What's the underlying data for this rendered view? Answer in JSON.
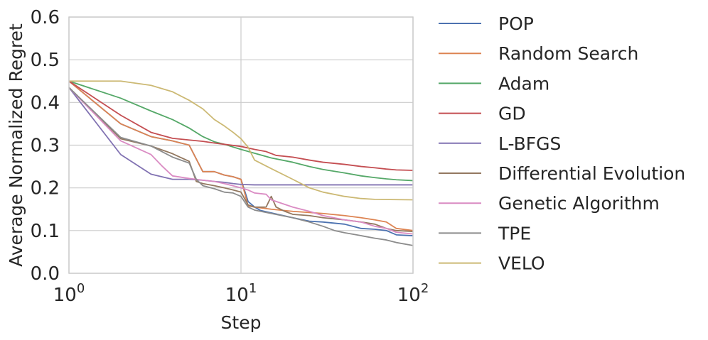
{
  "chart_data": {
    "type": "line",
    "xscale": "log",
    "xlabel": "Step",
    "ylabel": "Average Normalized Regret",
    "xlim": [
      1,
      100
    ],
    "ylim": [
      0.0,
      0.6
    ],
    "grid": true,
    "legend_position": "outside-right",
    "x_ticks": [
      {
        "value": 1,
        "base": "10",
        "exp": "0"
      },
      {
        "value": 10,
        "base": "10",
        "exp": "1"
      },
      {
        "value": 100,
        "base": "10",
        "exp": "2"
      }
    ],
    "y_ticks": [
      {
        "value": 0.0,
        "label": "0.0"
      },
      {
        "value": 0.1,
        "label": "0.1"
      },
      {
        "value": 0.2,
        "label": "0.2"
      },
      {
        "value": 0.3,
        "label": "0.3"
      },
      {
        "value": 0.4,
        "label": "0.4"
      },
      {
        "value": 0.5,
        "label": "0.5"
      },
      {
        "value": 0.6,
        "label": "0.6"
      }
    ],
    "series": [
      {
        "name": "POP",
        "color": "#4c72b0",
        "points": [
          [
            1,
            0.45
          ],
          [
            2,
            0.35
          ],
          [
            3,
            0.32
          ],
          [
            4,
            0.31
          ],
          [
            5,
            0.3
          ],
          [
            6,
            0.238
          ],
          [
            7,
            0.238
          ],
          [
            8,
            0.23
          ],
          [
            9,
            0.226
          ],
          [
            10,
            0.22
          ],
          [
            11,
            0.168
          ],
          [
            12,
            0.155
          ],
          [
            13,
            0.147
          ],
          [
            20,
            0.13
          ],
          [
            25,
            0.122
          ],
          [
            30,
            0.12
          ],
          [
            40,
            0.115
          ],
          [
            50,
            0.105
          ],
          [
            60,
            0.103
          ],
          [
            70,
            0.1
          ],
          [
            80,
            0.09
          ],
          [
            100,
            0.088
          ]
        ]
      },
      {
        "name": "Random Search",
        "color": "#dd8452",
        "points": [
          [
            1,
            0.45
          ],
          [
            2,
            0.35
          ],
          [
            3,
            0.32
          ],
          [
            4,
            0.31
          ],
          [
            5,
            0.3
          ],
          [
            6,
            0.238
          ],
          [
            7,
            0.238
          ],
          [
            8,
            0.23
          ],
          [
            9,
            0.226
          ],
          [
            10,
            0.22
          ],
          [
            11,
            0.158
          ],
          [
            12,
            0.155
          ],
          [
            15,
            0.15
          ],
          [
            20,
            0.145
          ],
          [
            30,
            0.14
          ],
          [
            40,
            0.135
          ],
          [
            50,
            0.13
          ],
          [
            60,
            0.125
          ],
          [
            70,
            0.12
          ],
          [
            80,
            0.105
          ],
          [
            100,
            0.1
          ]
        ]
      },
      {
        "name": "Adam",
        "color": "#55a868",
        "points": [
          [
            1,
            0.45
          ],
          [
            2,
            0.41
          ],
          [
            3,
            0.38
          ],
          [
            4,
            0.36
          ],
          [
            5,
            0.34
          ],
          [
            6,
            0.32
          ],
          [
            7,
            0.308
          ],
          [
            8,
            0.302
          ],
          [
            10,
            0.29
          ],
          [
            15,
            0.27
          ],
          [
            20,
            0.26
          ],
          [
            25,
            0.25
          ],
          [
            30,
            0.243
          ],
          [
            40,
            0.235
          ],
          [
            50,
            0.228
          ],
          [
            60,
            0.224
          ],
          [
            70,
            0.221
          ],
          [
            80,
            0.219
          ],
          [
            100,
            0.217
          ]
        ]
      },
      {
        "name": "GD",
        "color": "#c44e52",
        "points": [
          [
            1,
            0.45
          ],
          [
            2,
            0.37
          ],
          [
            3,
            0.33
          ],
          [
            4,
            0.316
          ],
          [
            5,
            0.312
          ],
          [
            6,
            0.309
          ],
          [
            7,
            0.305
          ],
          [
            8,
            0.302
          ],
          [
            10,
            0.297
          ],
          [
            12,
            0.29
          ],
          [
            14,
            0.285
          ],
          [
            16,
            0.276
          ],
          [
            20,
            0.272
          ],
          [
            25,
            0.265
          ],
          [
            30,
            0.26
          ],
          [
            40,
            0.255
          ],
          [
            50,
            0.25
          ],
          [
            60,
            0.247
          ],
          [
            70,
            0.244
          ],
          [
            80,
            0.242
          ],
          [
            100,
            0.241
          ]
        ]
      },
      {
        "name": "L-BFGS",
        "color": "#8172b2",
        "points": [
          [
            1,
            0.435
          ],
          [
            2,
            0.278
          ],
          [
            3,
            0.232
          ],
          [
            4,
            0.22
          ],
          [
            5,
            0.22
          ],
          [
            6,
            0.218
          ],
          [
            7,
            0.215
          ],
          [
            8,
            0.213
          ],
          [
            9,
            0.21
          ],
          [
            10,
            0.208
          ],
          [
            12,
            0.207
          ],
          [
            20,
            0.207
          ],
          [
            50,
            0.207
          ],
          [
            100,
            0.207
          ]
        ]
      },
      {
        "name": "Differential Evolution",
        "color": "#937860",
        "points": [
          [
            1,
            0.435
          ],
          [
            2,
            0.315
          ],
          [
            3,
            0.298
          ],
          [
            4,
            0.28
          ],
          [
            5,
            0.262
          ],
          [
            5.5,
            0.215
          ],
          [
            6,
            0.21
          ],
          [
            7,
            0.205
          ],
          [
            8,
            0.2
          ],
          [
            9,
            0.195
          ],
          [
            10,
            0.19
          ],
          [
            11,
            0.16
          ],
          [
            12,
            0.155
          ],
          [
            14,
            0.155
          ],
          [
            15,
            0.18
          ],
          [
            16,
            0.155
          ],
          [
            18,
            0.145
          ],
          [
            20,
            0.138
          ],
          [
            25,
            0.135
          ],
          [
            30,
            0.13
          ],
          [
            40,
            0.125
          ],
          [
            50,
            0.12
          ],
          [
            60,
            0.115
          ],
          [
            70,
            0.105
          ],
          [
            80,
            0.1
          ],
          [
            100,
            0.098
          ]
        ]
      },
      {
        "name": "Genetic Algorithm",
        "color": "#da8bc3",
        "points": [
          [
            1,
            0.435
          ],
          [
            2,
            0.31
          ],
          [
            3,
            0.278
          ],
          [
            3.5,
            0.25
          ],
          [
            4,
            0.228
          ],
          [
            5,
            0.222
          ],
          [
            6,
            0.218
          ],
          [
            7,
            0.215
          ],
          [
            8,
            0.21
          ],
          [
            10,
            0.2
          ],
          [
            11,
            0.195
          ],
          [
            12,
            0.188
          ],
          [
            14,
            0.185
          ],
          [
            15,
            0.172
          ],
          [
            20,
            0.155
          ],
          [
            25,
            0.145
          ],
          [
            30,
            0.135
          ],
          [
            40,
            0.125
          ],
          [
            50,
            0.12
          ],
          [
            60,
            0.11
          ],
          [
            70,
            0.105
          ],
          [
            80,
            0.096
          ],
          [
            100,
            0.092
          ]
        ]
      },
      {
        "name": "TPE",
        "color": "#8c8c8c",
        "points": [
          [
            1,
            0.435
          ],
          [
            2,
            0.318
          ],
          [
            3,
            0.298
          ],
          [
            4,
            0.272
          ],
          [
            5,
            0.258
          ],
          [
            5.5,
            0.22
          ],
          [
            6,
            0.205
          ],
          [
            7,
            0.198
          ],
          [
            8,
            0.19
          ],
          [
            9,
            0.188
          ],
          [
            10,
            0.18
          ],
          [
            11,
            0.155
          ],
          [
            12,
            0.148
          ],
          [
            15,
            0.14
          ],
          [
            20,
            0.13
          ],
          [
            25,
            0.12
          ],
          [
            30,
            0.11
          ],
          [
            35,
            0.1
          ],
          [
            40,
            0.095
          ],
          [
            50,
            0.088
          ],
          [
            60,
            0.082
          ],
          [
            70,
            0.078
          ],
          [
            80,
            0.072
          ],
          [
            100,
            0.065
          ]
        ]
      },
      {
        "name": "VELO",
        "color": "#ccb974",
        "points": [
          [
            1,
            0.45
          ],
          [
            2,
            0.45
          ],
          [
            3,
            0.44
          ],
          [
            4,
            0.425
          ],
          [
            5,
            0.405
          ],
          [
            6,
            0.385
          ],
          [
            7,
            0.36
          ],
          [
            8,
            0.345
          ],
          [
            9,
            0.33
          ],
          [
            10,
            0.315
          ],
          [
            11,
            0.295
          ],
          [
            12,
            0.265
          ],
          [
            15,
            0.245
          ],
          [
            20,
            0.22
          ],
          [
            25,
            0.2
          ],
          [
            30,
            0.19
          ],
          [
            40,
            0.18
          ],
          [
            50,
            0.175
          ],
          [
            60,
            0.173
          ],
          [
            100,
            0.172
          ]
        ]
      }
    ]
  }
}
